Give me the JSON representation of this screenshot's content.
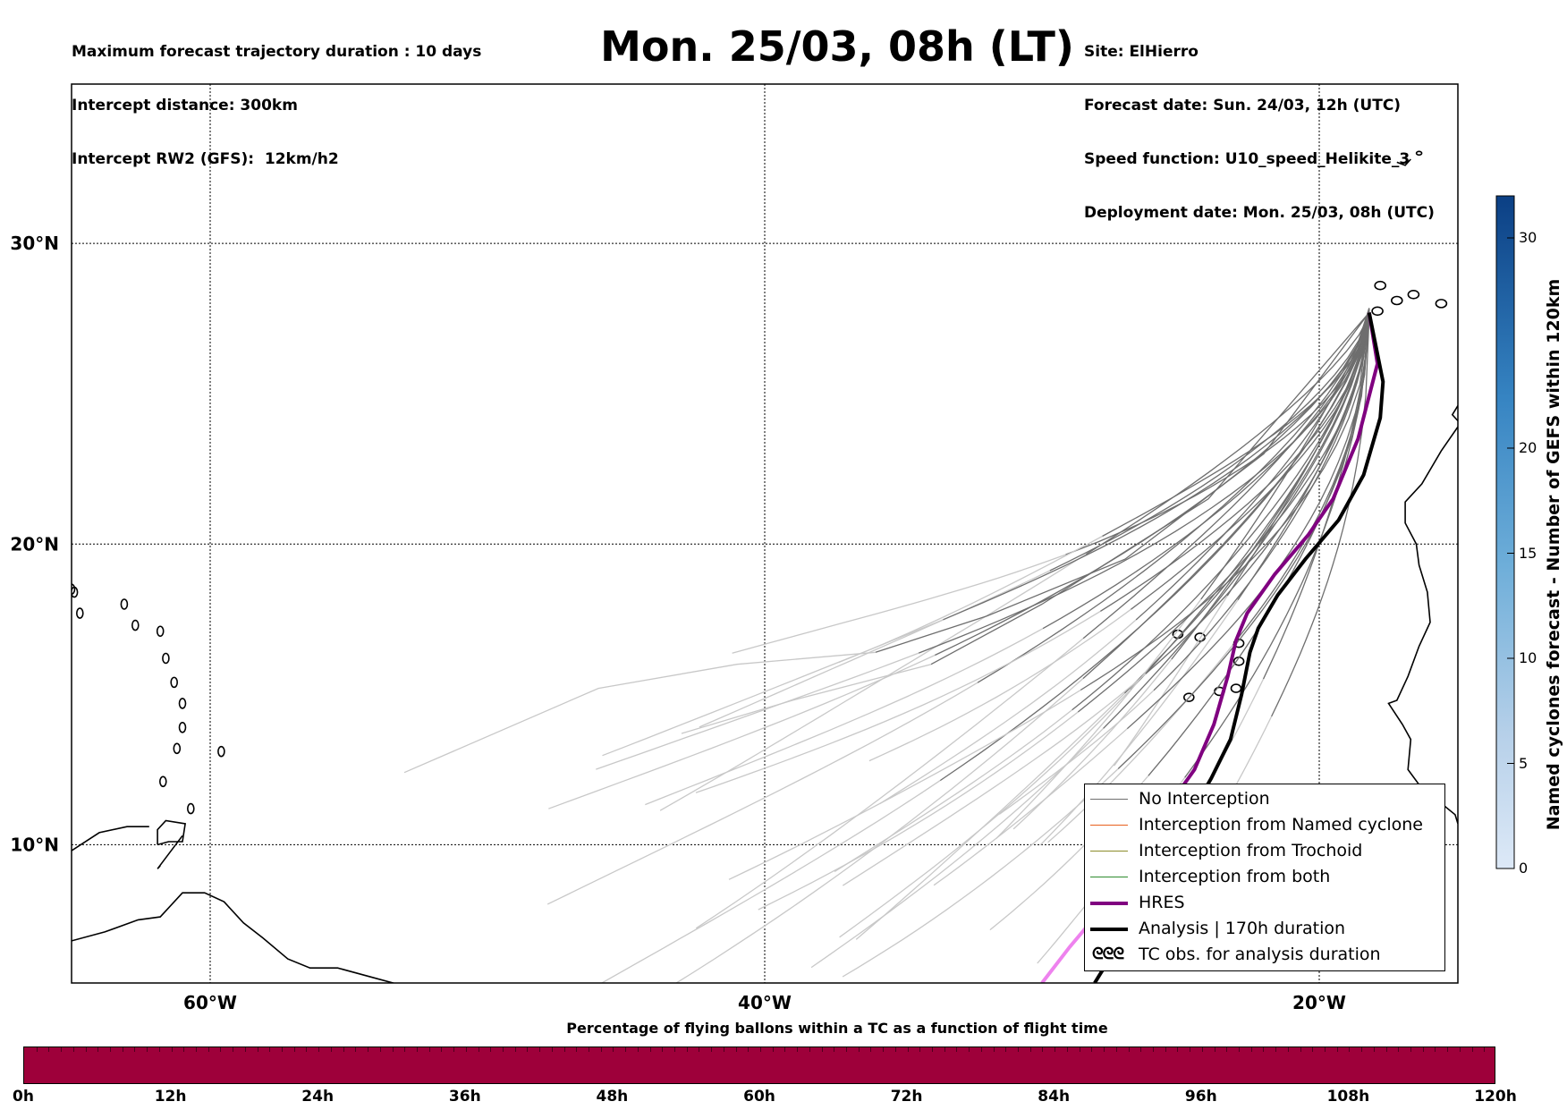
{
  "header_left": {
    "line1": "Maximum forecast trajectory duration : 10 days",
    "line2": "Intercept distance: 300km",
    "line3": "Intercept RW2 (GFS):  12km/h2"
  },
  "title": "Mon. 25/03, 08h (LT)",
  "header_right": {
    "site": "Site: ElHierro",
    "forecast_date": "Forecast date: Sun. 24/03, 12h (UTC)",
    "speed_function": "Speed function: U10_speed_Helikite_3",
    "deployment_date": "Deployment date: Mon. 25/03, 08h (UTC)"
  },
  "map": {
    "lon_labels": [
      "60°W",
      "40°W",
      "20°W"
    ],
    "lat_labels": [
      "30°N",
      "20°N",
      "10°N"
    ],
    "lon_values": [
      -60,
      -40,
      -20
    ],
    "lat_values": [
      30,
      20,
      10
    ],
    "extent": {
      "lon_min": -65,
      "lon_max": -15,
      "lat_min": 5.4,
      "lat_max": 35.3
    },
    "launch_site": {
      "lon": -18.2,
      "lat": 27.7
    },
    "colors": {
      "no_interception": "#6e6e6e",
      "no_interception_late": "#c8c8c8",
      "named_cyclone": "#e8601c",
      "trochoid": "#8c8c2a",
      "both": "#2e8b2e",
      "hres": "#800080",
      "analysis": "#000000",
      "tc_obs": "#ee82ee"
    }
  },
  "legend": {
    "items": [
      "No Interception",
      "Interception from Named cyclone",
      "Interception from Trochoid",
      "Interception from both",
      "HRES",
      "Analysis | 170h duration",
      "TC obs. for analysis duration"
    ],
    "tc_symbol": "ᘓᘓᘓ"
  },
  "colorbar_vertical": {
    "label": "Named cyclones forecast - Number of GEFS within 120km",
    "ticks": [
      "0",
      "5",
      "10",
      "15",
      "20",
      "30"
    ],
    "tick_values": [
      0,
      5,
      10,
      15,
      20,
      30
    ],
    "range": [
      0,
      32
    ]
  },
  "colorbar_horizontal": {
    "title": "Percentage of flying ballons within a TC as a function of flight time",
    "labels": [
      "0h",
      "12h",
      "24h",
      "36h",
      "48h",
      "60h",
      "72h",
      "84h",
      "96h",
      "108h",
      "120h"
    ],
    "fill_color": "#9e003a"
  }
}
